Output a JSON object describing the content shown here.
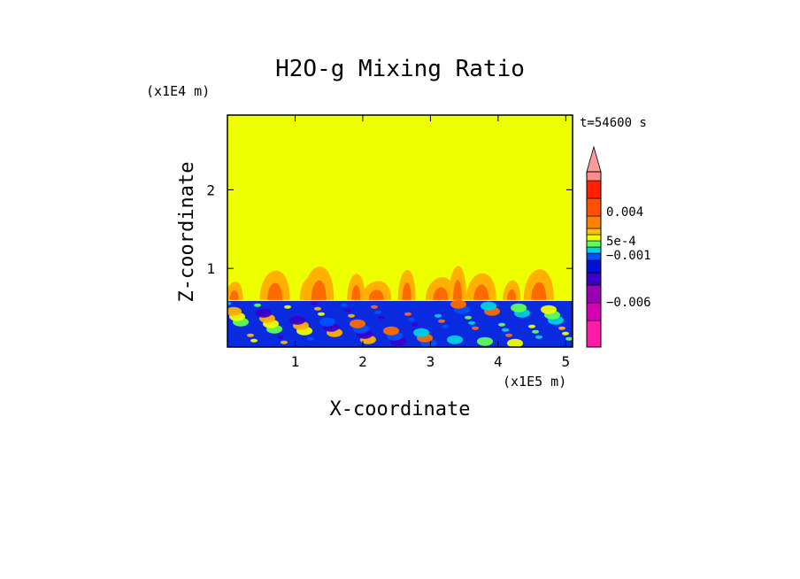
{
  "chart_data": {
    "type": "heatmap",
    "title": "H2O-g Mixing Ratio",
    "time_label": "t=54600 s",
    "xlabel": "X-coordinate",
    "ylabel": "Z-coordinate",
    "x_unit": "(x1E5 m)",
    "y_unit": "(x1E4 m)",
    "xlim": [
      0,
      5.1
    ],
    "ylim": [
      0,
      2.95
    ],
    "xticks": [
      1,
      2,
      3,
      4,
      5
    ],
    "yticks": [
      1,
      2
    ],
    "background_level_color": "#eeff00",
    "boundary_layer_top": 0.6,
    "colorbar": {
      "levels": [
        {
          "color": "#ff1aa8"
        },
        {
          "color": "#d400b8"
        },
        {
          "color": "#9b00b4"
        },
        {
          "color": "#3a00c8"
        },
        {
          "color": "#0010d8"
        },
        {
          "color": "#0050ff"
        },
        {
          "color": "#00d0e0"
        },
        {
          "color": "#60ff50"
        },
        {
          "color": "#eeff00"
        },
        {
          "color": "#ffc000"
        },
        {
          "color": "#ff8000"
        },
        {
          "color": "#ff5000"
        },
        {
          "color": "#ff2000"
        },
        {
          "color": "#ff8c8c"
        }
      ],
      "labels": [
        "0.004",
        "5e-4",
        "−0.001",
        "−0.006"
      ],
      "extend_top_color": "#ff9a9a"
    },
    "plumes_x": [
      0.1,
      0.7,
      1.2,
      1.35,
      1.9,
      2.2,
      2.65,
      3.15,
      3.4,
      3.75,
      4.2,
      4.6
    ]
  }
}
